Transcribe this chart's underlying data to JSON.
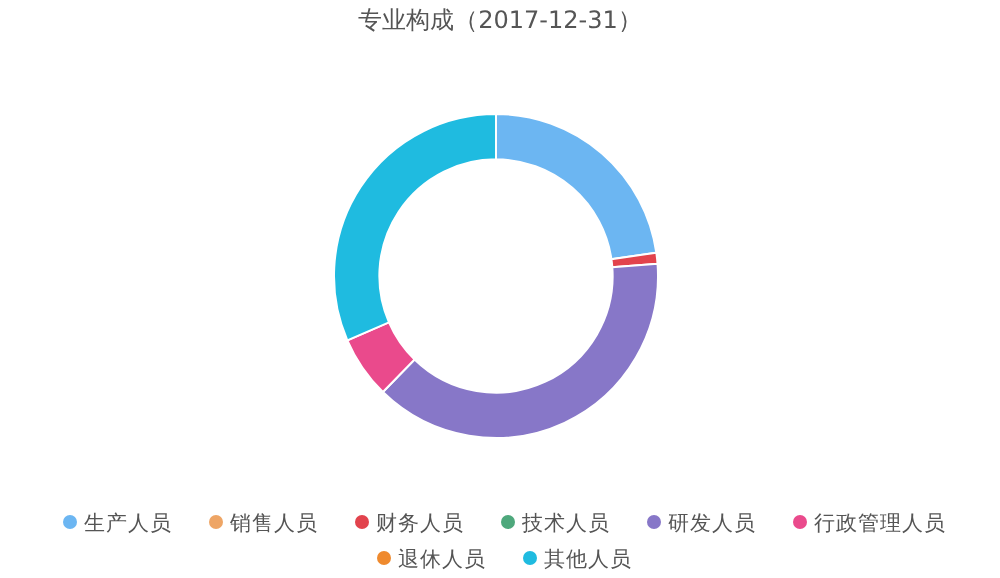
{
  "chart_data": {
    "type": "donut",
    "title": "专业构成（2017-12-31）",
    "categories": [
      "生产人员",
      "销售人员",
      "财务人员",
      "技术人员",
      "研发人员",
      "行政管理人员",
      "退休人员",
      "其他人员"
    ],
    "values": [
      22.7,
      0,
      1.1,
      0,
      38.5,
      6.2,
      0,
      31.5
    ],
    "colors": [
      "#6cb6f2",
      "#eea565",
      "#e2434d",
      "#4ea87c",
      "#8777c8",
      "#ea4a8c",
      "#ef8a2e",
      "#1fbbe0"
    ],
    "legend": "bottom"
  }
}
